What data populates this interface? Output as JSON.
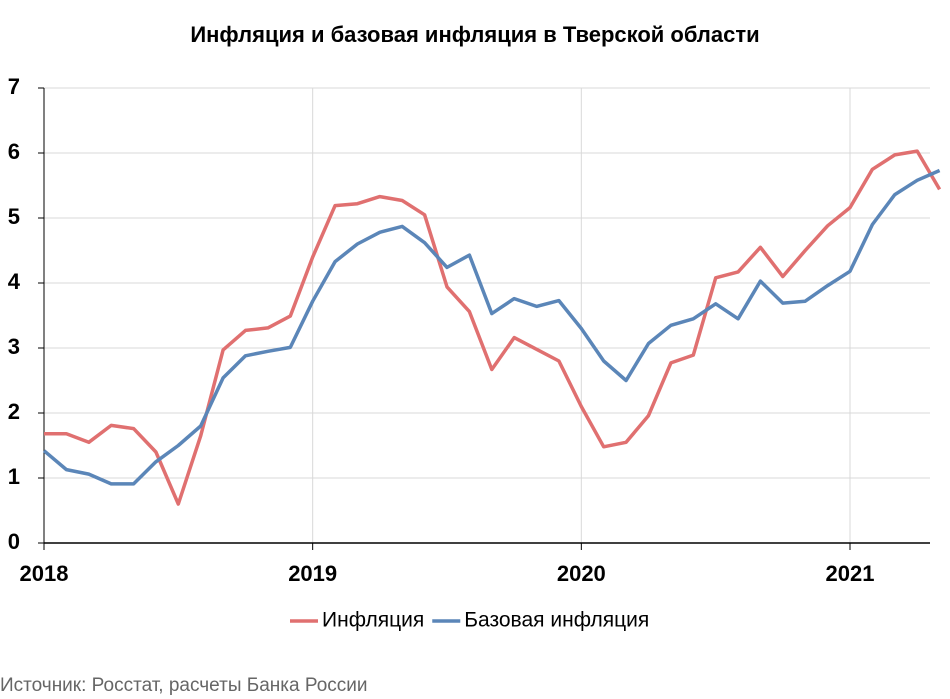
{
  "chart_data": {
    "type": "line",
    "title": "Инфляция и базовая инфляция в Тверской области",
    "categories": [
      "2018",
      null,
      null,
      null,
      null,
      null,
      null,
      null,
      null,
      null,
      null,
      null,
      "2019",
      null,
      null,
      null,
      null,
      null,
      null,
      null,
      null,
      null,
      null,
      null,
      "2020",
      null,
      null,
      null,
      null,
      null,
      null,
      null,
      null,
      null,
      null,
      null,
      "2021",
      null,
      null,
      null,
      null
    ],
    "series": [
      {
        "name": "Инфляция",
        "color": "#e07070",
        "values": [
          1.68,
          1.68,
          1.55,
          1.81,
          1.76,
          1.4,
          0.6,
          1.65,
          2.97,
          3.27,
          3.31,
          3.49,
          4.4,
          5.19,
          5.22,
          5.33,
          5.27,
          5.05,
          3.94,
          3.56,
          2.67,
          3.16,
          2.98,
          2.8,
          2.1,
          1.48,
          1.55,
          1.96,
          2.77,
          2.89,
          4.08,
          4.17,
          4.55,
          4.1,
          4.5,
          4.88,
          5.16,
          5.75,
          5.97,
          6.03,
          5.44
        ]
      },
      {
        "name": "Базовая инфляция",
        "color": "#5b86b8",
        "values": [
          1.42,
          1.13,
          1.06,
          0.91,
          0.91,
          1.25,
          1.5,
          1.8,
          2.54,
          2.88,
          2.95,
          3.01,
          3.72,
          4.33,
          4.6,
          4.78,
          4.87,
          4.62,
          4.24,
          4.43,
          3.53,
          3.76,
          3.64,
          3.73,
          3.3,
          2.8,
          2.5,
          3.07,
          3.35,
          3.45,
          3.68,
          3.45,
          4.03,
          3.69,
          3.72,
          3.96,
          4.18,
          4.9,
          5.36,
          5.58,
          5.73
        ]
      }
    ],
    "ylim": [
      0,
      7
    ],
    "yticks": [
      0,
      1,
      2,
      3,
      4,
      5,
      6,
      7
    ],
    "grid": true,
    "source": "Источник: Росстат, расчеты Банка России"
  }
}
